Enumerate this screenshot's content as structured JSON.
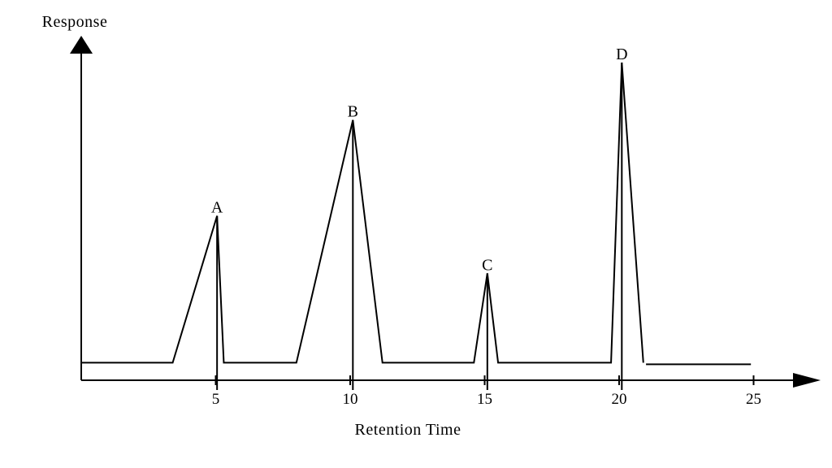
{
  "chart_data": {
    "type": "line",
    "title": "",
    "xlabel": "Retention Time",
    "ylabel": "Response",
    "xlim": [
      0,
      27
    ],
    "ylim": [
      0,
      100
    ],
    "xticks": [
      5,
      10,
      15,
      20,
      25
    ],
    "baseline": 6,
    "grid": false,
    "series": [
      {
        "x": [
          0,
          3.4,
          5.05,
          5.3,
          8,
          10.1,
          11.2,
          14.6,
          15.1,
          15.5,
          19.7,
          20.1,
          20.9,
          21.0,
          24.9
        ],
        "y": [
          6,
          6,
          52,
          6,
          6,
          82,
          6,
          6,
          34,
          6,
          6,
          100,
          6,
          5.5,
          5.5
        ]
      }
    ],
    "peaks": [
      {
        "label": "A",
        "x": 5.05,
        "y": 52
      },
      {
        "label": "B",
        "x": 10.1,
        "y": 82
      },
      {
        "label": "C",
        "x": 15.1,
        "y": 34
      },
      {
        "label": "D",
        "x": 20.1,
        "y": 100
      }
    ]
  }
}
